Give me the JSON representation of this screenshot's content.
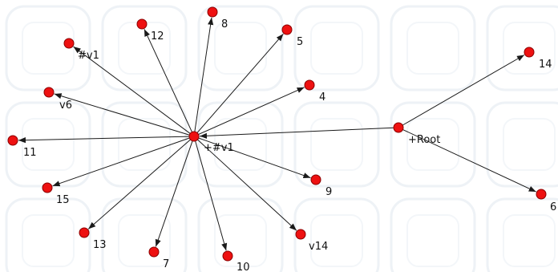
{
  "graph": {
    "node_color": "#ee1111",
    "node_border_color": "#8a0000",
    "edge_color": "#1a1a1a",
    "background_color": "#ffffff",
    "nodes": [
      {
        "id": "hub",
        "label": "+#v1"
      },
      {
        "id": "root",
        "label": "+Root"
      },
      {
        "id": "n8",
        "label": "8"
      },
      {
        "id": "n12",
        "label": "12"
      },
      {
        "id": "n5",
        "label": "5"
      },
      {
        "id": "nv1",
        "label": "#v1"
      },
      {
        "id": "n4",
        "label": "4"
      },
      {
        "id": "nv6",
        "label": "v6"
      },
      {
        "id": "n11",
        "label": "11"
      },
      {
        "id": "n9",
        "label": "9"
      },
      {
        "id": "n15",
        "label": "15"
      },
      {
        "id": "nv14",
        "label": "v14"
      },
      {
        "id": "n13",
        "label": "13"
      },
      {
        "id": "n7",
        "label": "7"
      },
      {
        "id": "n10",
        "label": "10"
      },
      {
        "id": "n14",
        "label": "14"
      },
      {
        "id": "n6",
        "label": "6"
      }
    ],
    "edges": [
      {
        "from": "root",
        "to": "hub"
      },
      {
        "from": "root",
        "to": "n14"
      },
      {
        "from": "root",
        "to": "n6"
      },
      {
        "from": "hub",
        "to": "n8"
      },
      {
        "from": "hub",
        "to": "n12"
      },
      {
        "from": "hub",
        "to": "n5"
      },
      {
        "from": "hub",
        "to": "nv1"
      },
      {
        "from": "hub",
        "to": "n4"
      },
      {
        "from": "hub",
        "to": "nv6"
      },
      {
        "from": "hub",
        "to": "n11"
      },
      {
        "from": "hub",
        "to": "n9"
      },
      {
        "from": "hub",
        "to": "n15"
      },
      {
        "from": "hub",
        "to": "nv14"
      },
      {
        "from": "hub",
        "to": "n13"
      },
      {
        "from": "hub",
        "to": "n7"
      },
      {
        "from": "hub",
        "to": "n10"
      }
    ]
  }
}
